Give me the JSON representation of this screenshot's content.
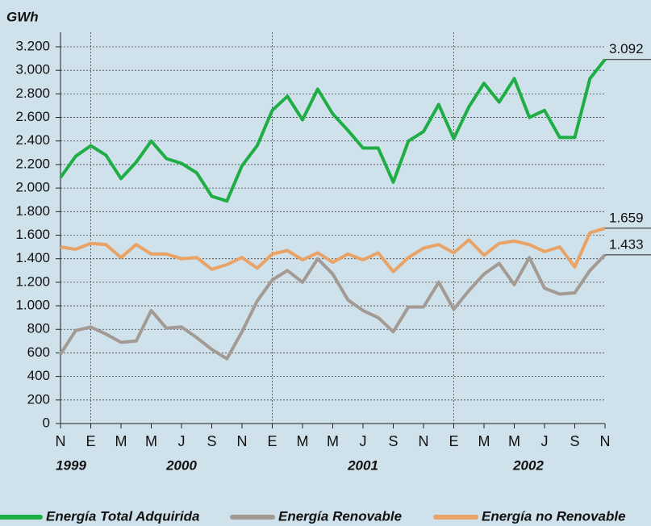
{
  "chart_data": {
    "type": "line",
    "y_label": "GWh",
    "categories": [
      "N",
      null,
      "E",
      null,
      "M",
      null,
      "M",
      null,
      "J",
      null,
      "S",
      null,
      "N",
      null,
      "E",
      null,
      "M",
      null,
      "M",
      null,
      "J",
      null,
      "S",
      null,
      "N",
      null,
      "E",
      null,
      "M",
      null,
      "M",
      null,
      "J",
      null,
      "S",
      null,
      "N"
    ],
    "x_group_labels": [
      "1999",
      "2000",
      "2001",
      "2002"
    ],
    "ylim": [
      0,
      3200
    ],
    "yticks": [
      0,
      200,
      400,
      600,
      800,
      {
        "value": 1000,
        "label": "1.000"
      },
      {
        "value": 1200,
        "label": "1.200"
      },
      {
        "value": 1400,
        "label": "1.400"
      },
      {
        "value": 1600,
        "label": "1.600"
      },
      {
        "value": 1800,
        "label": "1.800"
      },
      {
        "value": 2000,
        "label": "2.000"
      },
      {
        "value": 2200,
        "label": "2.200"
      },
      {
        "value": 2400,
        "label": "2.400"
      },
      {
        "value": 2600,
        "label": "2.600"
      },
      {
        "value": 2800,
        "label": "2.800"
      },
      {
        "value": 3000,
        "label": "3.000"
      },
      {
        "value": 3200,
        "label": "3.200"
      }
    ],
    "grid": true,
    "series": [
      {
        "name": "Energía Total Adquirida",
        "color": "#1fae45",
        "values": [
          2090,
          2270,
          2360,
          2280,
          2080,
          2220,
          2400,
          2250,
          2210,
          2130,
          1930,
          1890,
          2190,
          2360,
          2660,
          2780,
          2580,
          2840,
          2630,
          2490,
          2340,
          2340,
          2050,
          2400,
          2480,
          2710,
          2420,
          2690,
          2890,
          2730,
          2930,
          2600,
          2660,
          2430,
          2430,
          2930,
          3092
        ],
        "value_labels": [
          null,
          null,
          null,
          null,
          null,
          null,
          null,
          null,
          null,
          null,
          null,
          null,
          null,
          null,
          null,
          null,
          null,
          null,
          null,
          null,
          null,
          null,
          null,
          null,
          null,
          null,
          null,
          null,
          null,
          null,
          null,
          null,
          null,
          null,
          null,
          null,
          "3.092"
        ]
      },
      {
        "name": "Energía Renovable",
        "color": "#a39a94",
        "values": [
          590,
          790,
          820,
          760,
          690,
          700,
          960,
          810,
          820,
          730,
          630,
          550,
          780,
          1040,
          1220,
          1300,
          1200,
          1400,
          1270,
          1050,
          960,
          900,
          780,
          990,
          990,
          1200,
          970,
          1130,
          1270,
          1360,
          1180,
          1410,
          1150,
          1100,
          1110,
          1300,
          1433
        ],
        "value_labels": [
          null,
          null,
          null,
          null,
          null,
          null,
          null,
          null,
          null,
          null,
          null,
          null,
          null,
          null,
          null,
          null,
          null,
          null,
          null,
          null,
          null,
          null,
          null,
          null,
          null,
          null,
          null,
          null,
          null,
          null,
          null,
          null,
          null,
          null,
          null,
          null,
          "1.433"
        ]
      },
      {
        "name": "Energía no Renovable",
        "color": "#e9a366",
        "values": [
          1500,
          1480,
          1530,
          1520,
          1410,
          1520,
          1440,
          1440,
          1400,
          1410,
          1310,
          1350,
          1410,
          1320,
          1440,
          1470,
          1390,
          1450,
          1370,
          1440,
          1390,
          1450,
          1290,
          1410,
          1490,
          1520,
          1450,
          1560,
          1430,
          1530,
          1550,
          1520,
          1460,
          1500,
          1330,
          1620,
          1659
        ],
        "value_labels": [
          null,
          null,
          null,
          null,
          null,
          null,
          null,
          null,
          null,
          null,
          null,
          null,
          null,
          null,
          null,
          null,
          null,
          null,
          null,
          null,
          null,
          null,
          null,
          null,
          null,
          null,
          null,
          null,
          null,
          null,
          null,
          null,
          null,
          null,
          null,
          null,
          "1.659"
        ]
      }
    ]
  }
}
